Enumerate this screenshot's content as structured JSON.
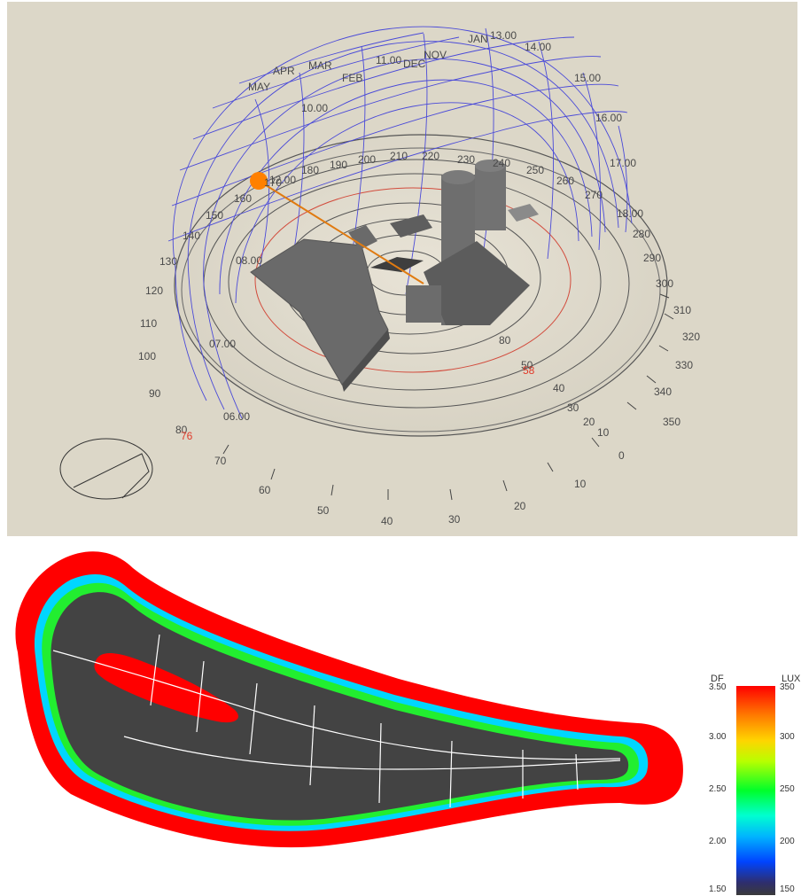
{
  "sunpath": {
    "azimuth_labels": [
      "180",
      "190",
      "200",
      "210",
      "220",
      "230",
      "240",
      "250",
      "260",
      "270",
      "280",
      "290",
      "300",
      "310",
      "320",
      "330",
      "340",
      "350",
      "0",
      "10",
      "20",
      "30",
      "40",
      "50",
      "60",
      "70",
      "80",
      "90",
      "100",
      "110",
      "120",
      "130",
      "140",
      "150",
      "160",
      "170"
    ],
    "altitude_labels": [
      "80",
      "50",
      "40",
      "30",
      "20",
      "10"
    ],
    "hour_labels": [
      "10.00",
      "14.00",
      "15.00",
      "16.00",
      "17.00",
      "18.00",
      "08.00",
      "07.00",
      "06.00",
      "11.00",
      "13.00",
      "12.00"
    ],
    "month_labels": [
      "MAY",
      "APR",
      "MAR",
      "FEB",
      "NOV",
      "DEC",
      "JAN"
    ],
    "red_labels": [
      "76",
      "58"
    ],
    "sun_color": "#ff8000"
  },
  "daylight_map": {
    "colors": {
      "floor": "#404040",
      "high": "#ff0000",
      "mid_green": "#00ff20",
      "mid_cyan": "#00c8ff",
      "low_blue": "#1040ff",
      "window_line": "#ffffff"
    }
  },
  "legend": {
    "left_header": "DF",
    "right_header": "LUX",
    "df_ticks": [
      "3.50",
      "3.00",
      "2.50",
      "2.00",
      "1.50"
    ],
    "lux_ticks": [
      "350",
      "300",
      "250",
      "200",
      "150"
    ]
  }
}
